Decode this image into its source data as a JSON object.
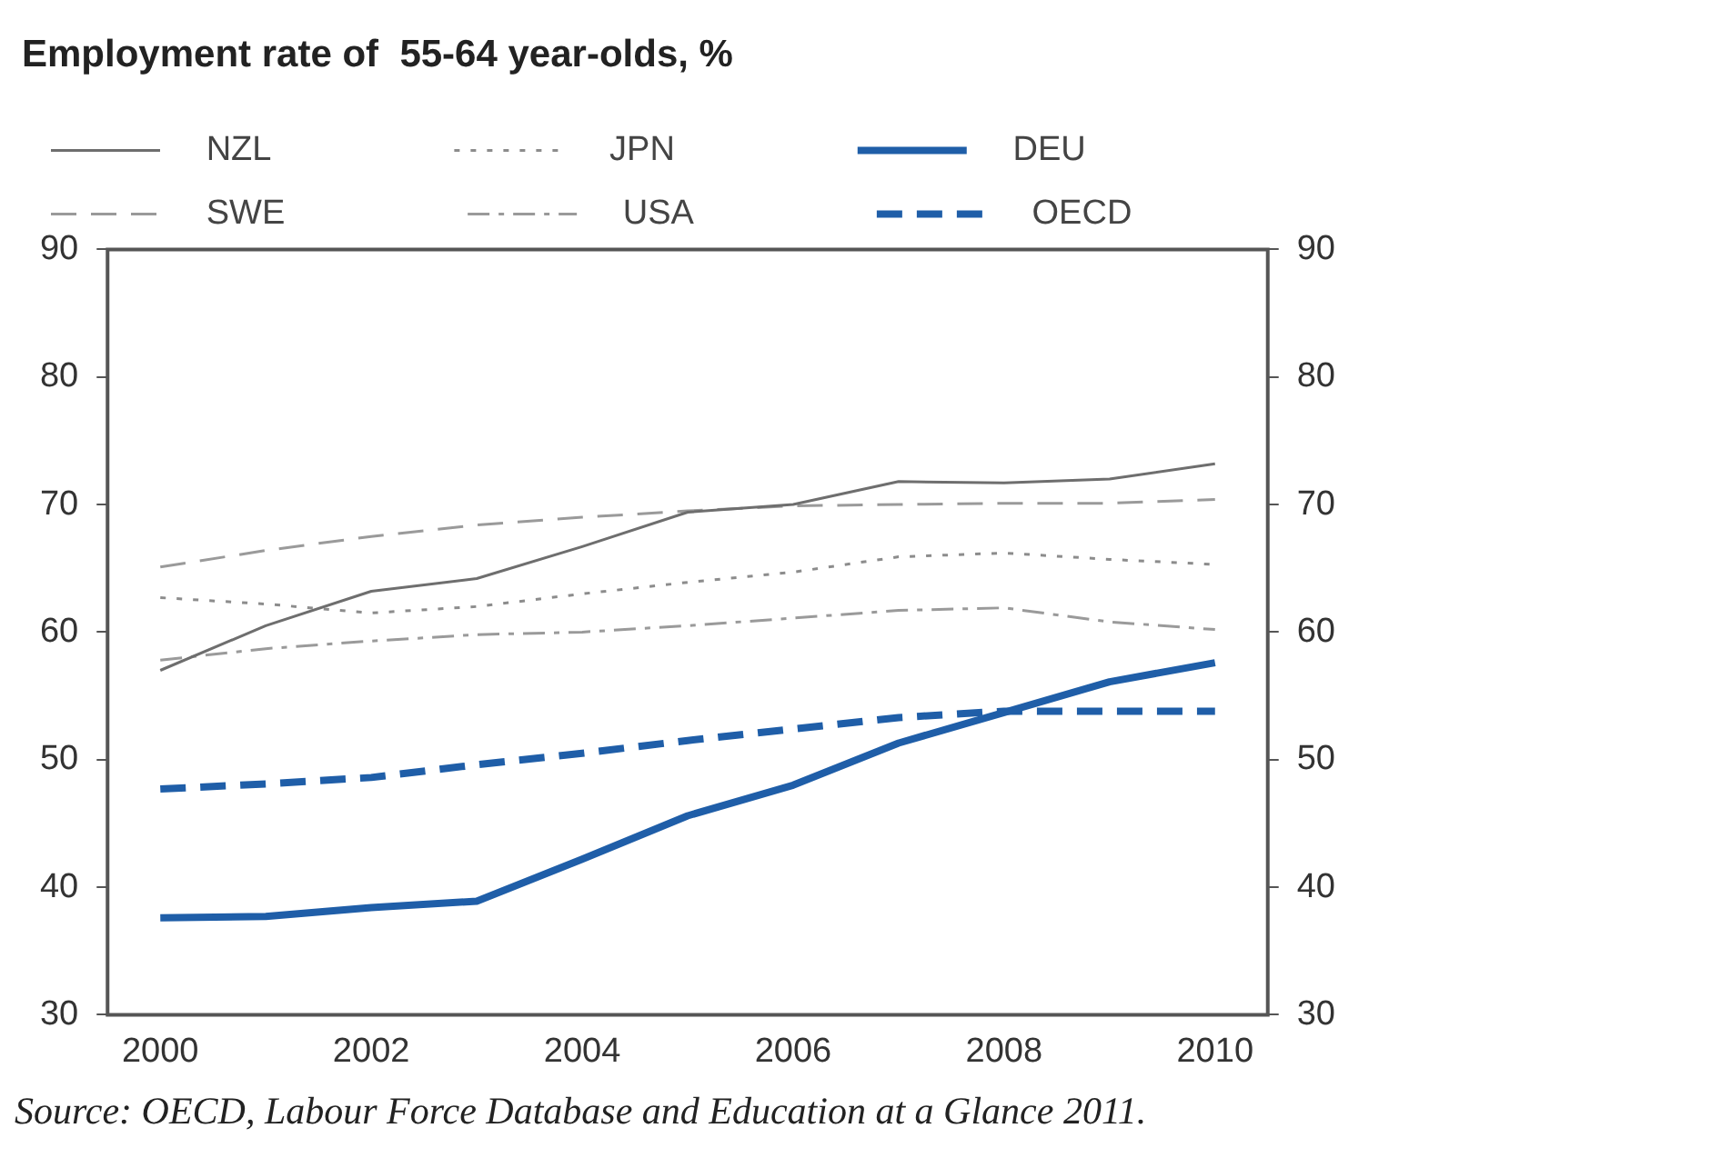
{
  "chart_data": {
    "type": "line",
    "title": "Employment rate of  55-64 year-olds, %",
    "categories": [
      "2000",
      null,
      "2002",
      null,
      "2004",
      null,
      "2006",
      null,
      "2008",
      null,
      "2010"
    ],
    "series": [
      {
        "name": "NZL",
        "color": "#6e6e6e",
        "line_style": "solid",
        "values": [
          57.0,
          60.5,
          63.2,
          64.2,
          66.7,
          69.4,
          70.0,
          71.8,
          71.7,
          72.0,
          73.2
        ]
      },
      {
        "name": "JPN",
        "color": "#8c8c8c",
        "line_style": "dotted",
        "values": [
          62.7,
          62.2,
          61.5,
          62.0,
          63.0,
          63.9,
          64.7,
          65.9,
          66.2,
          65.7,
          65.3
        ]
      },
      {
        "name": "DEU",
        "color": "#1f5ea8",
        "line_style": "solid",
        "values": [
          37.6,
          37.7,
          38.4,
          38.9,
          42.2,
          45.6,
          48.0,
          51.3,
          53.7,
          56.1,
          57.6
        ]
      },
      {
        "name": "SWE",
        "color": "#9a9a9a",
        "line_style": "dashed",
        "values": [
          65.1,
          66.4,
          67.5,
          68.4,
          69.0,
          69.5,
          69.9,
          70.0,
          70.1,
          70.1,
          70.4
        ]
      },
      {
        "name": "USA",
        "color": "#9a9a9a",
        "line_style": "dashdot",
        "values": [
          57.8,
          58.7,
          59.3,
          59.8,
          60.0,
          60.5,
          61.1,
          61.7,
          61.9,
          60.8,
          60.2
        ]
      },
      {
        "name": "OECD",
        "color": "#1f5ea8",
        "line_style": "dashed",
        "values": [
          47.7,
          48.1,
          48.6,
          49.6,
          50.5,
          51.5,
          52.4,
          53.3,
          53.8,
          53.8,
          53.8
        ]
      }
    ],
    "ylim": [
      30,
      90
    ],
    "yticks": [
      30,
      40,
      50,
      60,
      70,
      80,
      90
    ],
    "y2lim": [
      30,
      90
    ],
    "y2ticks": [
      30,
      40,
      50,
      60,
      70,
      80,
      90
    ],
    "grid": false,
    "legend": "top",
    "marker": "none",
    "annotations": [
      "Source: OECD, Labour Force Database and Education at a Glance 2011."
    ]
  }
}
